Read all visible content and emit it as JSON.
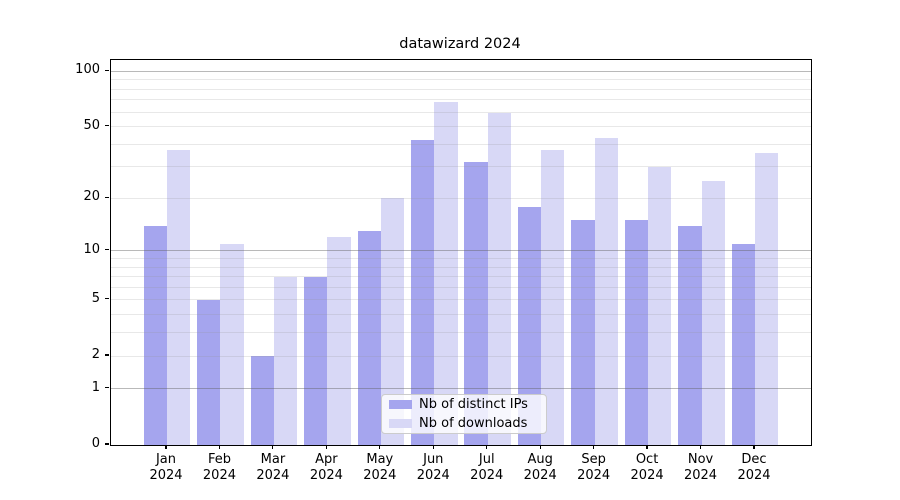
{
  "title": "datawizard 2024",
  "chart_data": {
    "type": "bar",
    "title": "datawizard 2024",
    "categories": [
      "Jan",
      "Feb",
      "Mar",
      "Apr",
      "May",
      "Jun",
      "Jul",
      "Aug",
      "Sep",
      "Oct",
      "Nov",
      "Dec"
    ],
    "x_year": "2024",
    "series": [
      {
        "name": "Nb of distinct IPs",
        "color": "#a5a5ee",
        "values": [
          14,
          5,
          2,
          7,
          13,
          42,
          32,
          18,
          15,
          15,
          14,
          11
        ]
      },
      {
        "name": "Nb of downloads",
        "color": "#d8d8f6",
        "values": [
          37,
          11,
          7,
          12,
          20,
          68,
          59,
          37,
          43,
          30,
          25,
          36
        ]
      }
    ],
    "y_axis": {
      "scale": "log1p",
      "tick_values": [
        100,
        50,
        20,
        10,
        5,
        2,
        1,
        0
      ],
      "major_grid_values": [
        1,
        10,
        100
      ],
      "minor_grid_values": [
        2,
        3,
        4,
        5,
        6,
        7,
        8,
        9,
        20,
        30,
        40,
        50,
        60,
        70,
        80,
        90
      ],
      "range_min": 0,
      "range_max": 115
    },
    "legend": {
      "position": "lower-center",
      "entries": [
        "Nb of distinct IPs",
        "Nb of downloads"
      ]
    },
    "grid": true
  },
  "colors": {
    "bar_distinct_ips": "#a5a5ee",
    "bar_downloads": "#d8d8f6",
    "major_grid": "#bdbdbd",
    "minor_grid": "#e8e8e8",
    "axis": "#000000",
    "background": "#ffffff"
  }
}
